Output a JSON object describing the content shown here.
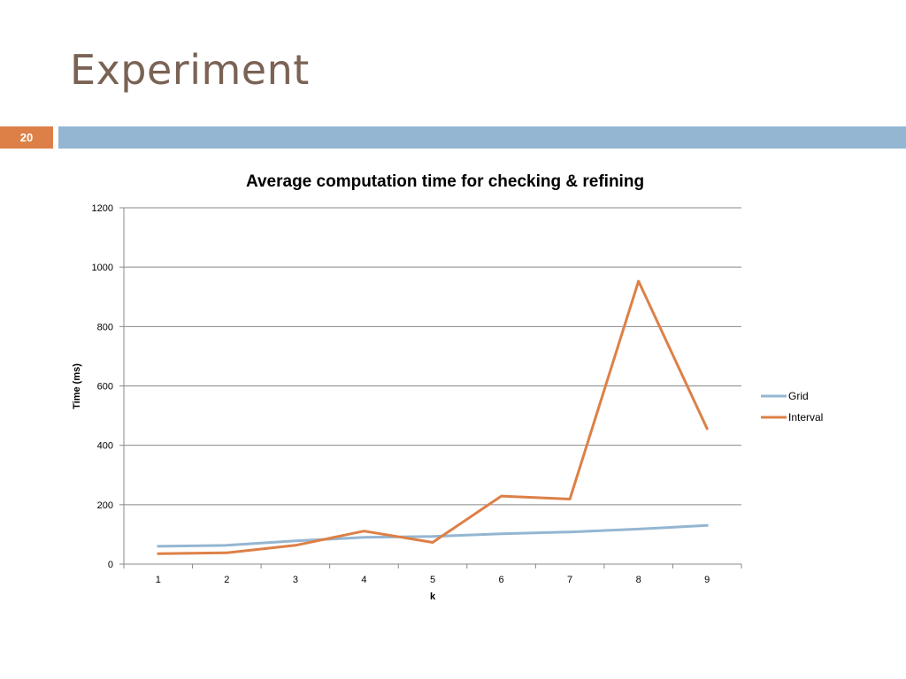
{
  "slide": {
    "title": "Experiment",
    "number": "20"
  },
  "colors": {
    "title": "#7a6254",
    "slide_number_bg": "#dd8047",
    "header_bar": "#94b6d2",
    "grid": "#888888"
  },
  "chart_data": {
    "type": "line",
    "title": "Average computation time for checking & refining",
    "xlabel": "k",
    "ylabel": "Time (ms)",
    "categories": [
      "1",
      "2",
      "3",
      "4",
      "5",
      "6",
      "7",
      "8",
      "9"
    ],
    "ylim": [
      0,
      1200
    ],
    "yticks": [
      0,
      200,
      400,
      600,
      800,
      1000,
      1200
    ],
    "grid": true,
    "legend": "right",
    "series": [
      {
        "name": "Grid",
        "color": "#94b6d2",
        "values": [
          60,
          63,
          78,
          90,
          93,
          102,
          108,
          118,
          130
        ]
      },
      {
        "name": "Interval",
        "color": "#dd8047",
        "values": [
          35,
          38,
          63,
          111,
          73,
          229,
          219,
          953,
          456
        ]
      }
    ]
  }
}
